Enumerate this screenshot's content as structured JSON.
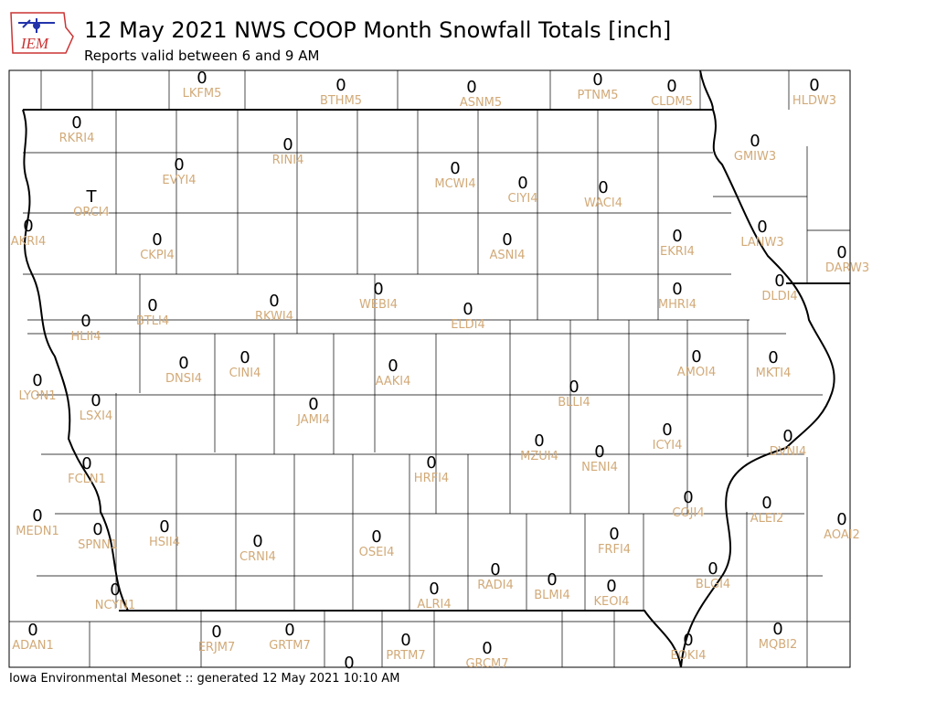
{
  "logo": "IEM",
  "title": "12 May 2021 NWS COOP Month Snowfall Totals [inch]",
  "subtitle": "Reports valid between 6 and 9 AM",
  "footer": "Iowa Environmental Mesonet :: generated 12 May 2021 10:10 AM",
  "stations": [
    {
      "id": "LKFM5",
      "value": 0
    },
    {
      "id": "BTHM5",
      "value": 0
    },
    {
      "id": "ASNM5",
      "value": 0
    },
    {
      "id": "PTNM5",
      "value": 0
    },
    {
      "id": "CLDM5",
      "value": 0
    },
    {
      "id": "HLDW3",
      "value": 0
    },
    {
      "id": "RKRI4",
      "value": 0
    },
    {
      "id": "RINI4",
      "value": 0
    },
    {
      "id": "EVYI4",
      "value": 0
    },
    {
      "id": "MCWI4",
      "value": 0
    },
    {
      "id": "CIYI4",
      "value": 0
    },
    {
      "id": "WACI4",
      "value": 0
    },
    {
      "id": "GMIW3",
      "value": 0
    },
    {
      "id": "ORCI4",
      "value": "T"
    },
    {
      "id": "AKRI4",
      "value": 0
    },
    {
      "id": "CKPI4",
      "value": 0
    },
    {
      "id": "ASNI4",
      "value": 0
    },
    {
      "id": "EKRI4",
      "value": 0
    },
    {
      "id": "LANW3",
      "value": 0
    },
    {
      "id": "DARW3",
      "value": 0
    },
    {
      "id": "DLDI4",
      "value": 0
    },
    {
      "id": "BTLI4",
      "value": 0
    },
    {
      "id": "RKWI4",
      "value": 0
    },
    {
      "id": "WEBI4",
      "value": 0
    },
    {
      "id": "ELDI4",
      "value": 0
    },
    {
      "id": "MHRI4",
      "value": 0
    },
    {
      "id": "HLII4",
      "value": 0
    },
    {
      "id": "DNSI4",
      "value": 0
    },
    {
      "id": "CINI4",
      "value": 0
    },
    {
      "id": "AAKI4",
      "value": 0
    },
    {
      "id": "AMOI4",
      "value": 0
    },
    {
      "id": "MKTI4",
      "value": 0
    },
    {
      "id": "LYON1",
      "value": 0
    },
    {
      "id": "LSXI4",
      "value": 0
    },
    {
      "id": "JAMI4",
      "value": 0
    },
    {
      "id": "BLLI4",
      "value": 0
    },
    {
      "id": "ICYI4",
      "value": 0
    },
    {
      "id": "DVNI4",
      "value": 0
    },
    {
      "id": "FCLN1",
      "value": 0
    },
    {
      "id": "HRFI4",
      "value": 0
    },
    {
      "id": "MZUI4",
      "value": 0
    },
    {
      "id": "NENI4",
      "value": 0
    },
    {
      "id": "MEDN1",
      "value": 0
    },
    {
      "id": "SPNN1",
      "value": 0
    },
    {
      "id": "HSII4",
      "value": 0
    },
    {
      "id": "CRNI4",
      "value": 0
    },
    {
      "id": "OSEI4",
      "value": 0
    },
    {
      "id": "FRFI4",
      "value": 0
    },
    {
      "id": "COJI4",
      "value": 0
    },
    {
      "id": "ALEI2",
      "value": 0
    },
    {
      "id": "AOAI2",
      "value": 0
    },
    {
      "id": "ALRI4",
      "value": 0
    },
    {
      "id": "RADI4",
      "value": 0
    },
    {
      "id": "BLMI4",
      "value": 0
    },
    {
      "id": "KEOI4",
      "value": 0
    },
    {
      "id": "BLGI4",
      "value": 0
    },
    {
      "id": "NCYN1",
      "value": 0
    },
    {
      "id": "ADAN1",
      "value": 0
    },
    {
      "id": "ERJM7",
      "value": 0
    },
    {
      "id": "GRTM7",
      "value": 0
    },
    {
      "id": "PRTM7",
      "value": 0
    },
    {
      "id": "GRCM7",
      "value": 0
    },
    {
      "id": "EOKI4",
      "value": 0
    },
    {
      "id": "MQBI2",
      "value": 0
    },
    {
      "id": null,
      "value": 0
    }
  ]
}
